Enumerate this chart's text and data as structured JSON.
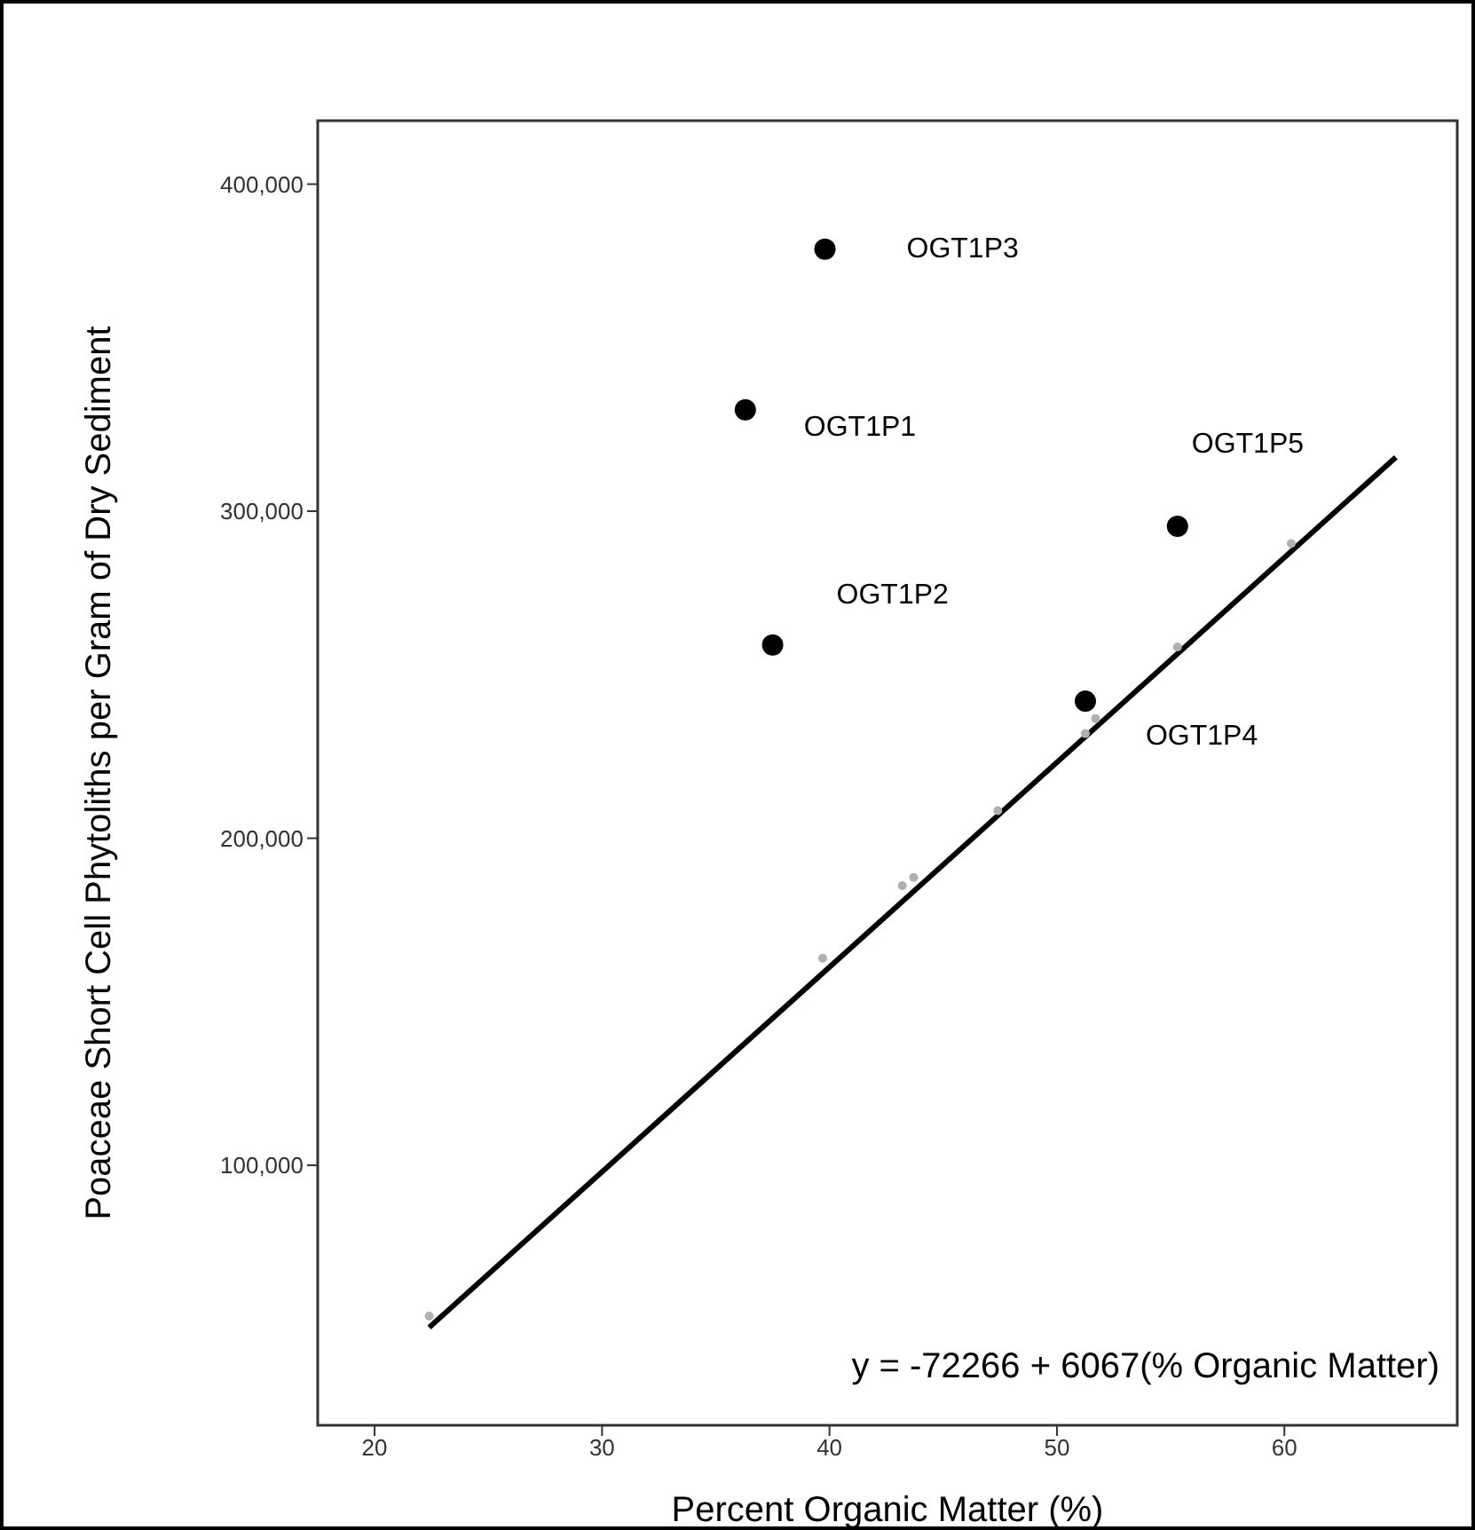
{
  "chart_data": {
    "type": "scatter",
    "xlabel": "Percent Organic Matter (%)",
    "ylabel": "Poaceae Short Cell Phytoliths per Gram of Dry Sediment",
    "xlim": [
      17.5,
      67.6
    ],
    "xticks": [
      20,
      30,
      40,
      50,
      60
    ],
    "ylim": [
      20500,
      419400
    ],
    "yticks": [
      {
        "value": 100000,
        "label": "100,000"
      },
      {
        "value": 200000,
        "label": "200,000"
      },
      {
        "value": 300000,
        "label": "300,000"
      },
      {
        "value": 400000,
        "label": "400,000"
      }
    ],
    "grid": false,
    "legend": false,
    "series": [
      {
        "marker": "circle",
        "color": "#000000",
        "x": [
          36.3,
          37.5,
          39.8,
          51.25,
          55.3
        ],
        "values": [
          331000,
          259100,
          380100,
          241900,
          295400
        ]
      },
      {
        "marker": "circle",
        "color": "#b0b0b0",
        "x": [
          22.4,
          39.7,
          43.2,
          43.7,
          47.4,
          51.25,
          51.7,
          55.3,
          60.3
        ],
        "values": [
          53900,
          163300,
          185500,
          188000,
          208400,
          232000,
          236600,
          258500,
          290100
        ]
      },
      {
        "type": "line",
        "marker": "none",
        "line_style": "solid",
        "color": "#000000",
        "x": [
          22.4,
          64.9
        ],
        "values": [
          50400,
          316500
        ]
      }
    ],
    "annotations": [
      {
        "text": "OGT1P1",
        "x": 36.3,
        "y": 331000
      },
      {
        "text": "OGT1P2",
        "x": 37.5,
        "y": 259100
      },
      {
        "text": "OGT1P3",
        "x": 39.8,
        "y": 380100
      },
      {
        "text": "OGT1P4",
        "x": 51.25,
        "y": 241900
      },
      {
        "text": "OGT1P5",
        "x": 55.3,
        "y": 295400
      },
      "y = -72266 + 6067(% Organic Matter)"
    ]
  }
}
